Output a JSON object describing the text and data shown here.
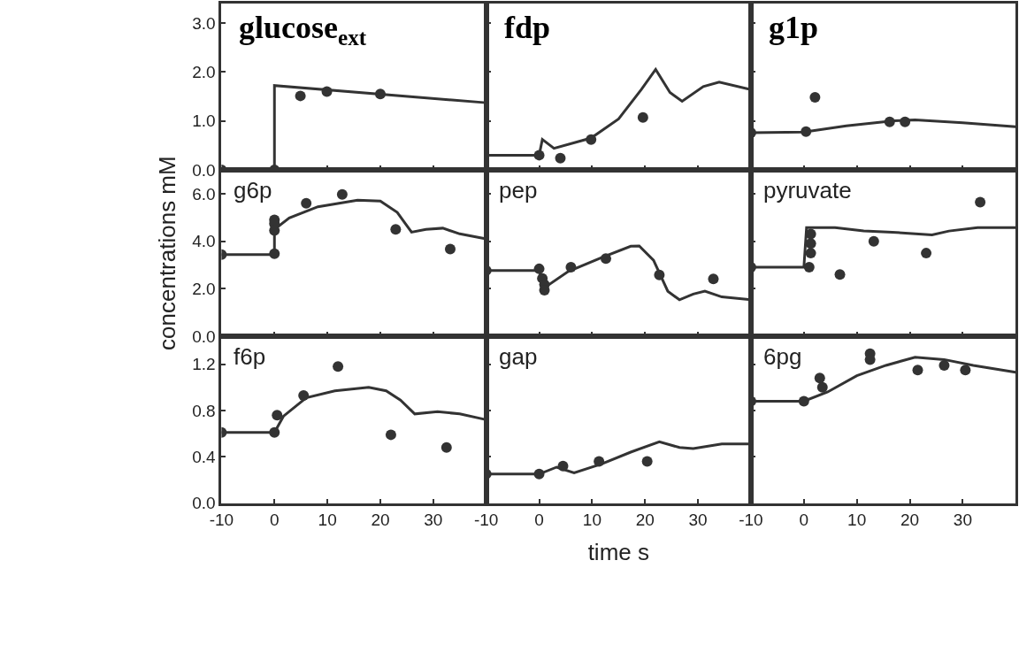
{
  "chart_data": [
    {
      "type": "line",
      "title": "glucose$_{ext}$",
      "xlim": [
        -10,
        40
      ],
      "ylim": [
        0,
        3.4
      ],
      "xticks": [
        -10,
        0,
        10,
        20,
        30
      ],
      "yticks": [
        {
          "value": 0,
          "label": "0.0"
        },
        {
          "value": 1,
          "label": "1.0"
        },
        {
          "value": 2,
          "label": "2.0"
        },
        {
          "value": 3,
          "label": "3.0"
        }
      ],
      "tick_labels": "y",
      "series": [
        {
          "marker": "none",
          "color": "#333333",
          "x": [
            -10,
            0,
            0,
            40
          ],
          "values": [
            0,
            0,
            1.72,
            1.37
          ]
        },
        {
          "type": "scatter",
          "marker": "circle",
          "color": "#333333",
          "x": [
            -10,
            0,
            4.9,
            9.9,
            20
          ],
          "values": [
            0,
            0,
            1.51,
            1.6,
            1.55
          ]
        }
      ]
    },
    {
      "type": "line",
      "title": "fdp",
      "xlim": [
        -10,
        40
      ],
      "ylim": [
        0,
        3.4
      ],
      "xticks": [
        -10,
        0,
        10,
        20,
        30
      ],
      "yticks": [
        0,
        1,
        2,
        3
      ],
      "tick_labels": false,
      "series": [
        {
          "marker": "none",
          "color": "#333333",
          "x": [
            -10,
            0,
            0.6,
            2.8,
            9.8,
            15,
            19.3,
            22,
            24.7,
            27,
            31,
            34,
            40
          ],
          "values": [
            0.3,
            0.3,
            0.62,
            0.44,
            0.65,
            1.04,
            1.64,
            2.05,
            1.58,
            1.4,
            1.7,
            1.79,
            1.64
          ]
        },
        {
          "type": "scatter",
          "marker": "circle",
          "color": "#333333",
          "x": [
            0,
            4,
            9.8,
            19.6
          ],
          "values": [
            0.3,
            0.24,
            0.62,
            1.07
          ]
        }
      ]
    },
    {
      "type": "line",
      "title": "g1p",
      "xlim": [
        -10,
        40
      ],
      "ylim": [
        0,
        3.4
      ],
      "xticks": [
        -10,
        0,
        10,
        20,
        30
      ],
      "yticks": [
        0,
        1,
        2,
        3
      ],
      "tick_labels": false,
      "series": [
        {
          "marker": "none",
          "color": "#333333",
          "x": [
            -10,
            0,
            8,
            17,
            21,
            30,
            40
          ],
          "values": [
            0.76,
            0.77,
            0.9,
            1.0,
            1.02,
            0.96,
            0.88
          ]
        },
        {
          "type": "scatter",
          "marker": "circle",
          "color": "#333333",
          "x": [
            -10,
            0.4,
            2.1,
            16.2,
            19.1
          ],
          "values": [
            0.76,
            0.78,
            1.48,
            0.98,
            0.98
          ]
        }
      ]
    },
    {
      "type": "line",
      "title": "g6p",
      "ylabel": "concentrations mM",
      "xlim": [
        -10,
        40
      ],
      "ylim": [
        0,
        7
      ],
      "xticks": [
        -10,
        0,
        10,
        20,
        30
      ],
      "yticks": [
        {
          "value": 0,
          "label": "0.0"
        },
        {
          "value": 2,
          "label": "2.0"
        },
        {
          "value": 4,
          "label": "4.0"
        },
        {
          "value": 6,
          "label": "6.0"
        }
      ],
      "tick_labels": "y",
      "series": [
        {
          "marker": "none",
          "color": "#333333",
          "x": [
            -10,
            0,
            0,
            2.8,
            8.2,
            15.7,
            20,
            23.2,
            25.9,
            28.6,
            31.8,
            35,
            40
          ],
          "values": [
            3.44,
            3.44,
            4.5,
            4.98,
            5.45,
            5.73,
            5.69,
            5.21,
            4.38,
            4.5,
            4.55,
            4.31,
            4.1
          ]
        },
        {
          "type": "scatter",
          "marker": "circle",
          "color": "#333333",
          "x": [
            -10,
            0,
            0,
            0,
            0,
            6,
            12.8,
            22.9,
            33.2
          ],
          "values": [
            3.44,
            3.48,
            4.9,
            4.74,
            4.45,
            5.6,
            5.97,
            4.5,
            3.67
          ]
        }
      ]
    },
    {
      "type": "line",
      "title": "pep",
      "xlim": [
        -10,
        40
      ],
      "ylim": [
        0,
        7
      ],
      "xticks": [
        -10,
        0,
        10,
        20,
        30
      ],
      "yticks": [
        0,
        2,
        4,
        6
      ],
      "tick_labels": false,
      "series": [
        {
          "marker": "none",
          "color": "#333333",
          "x": [
            -10,
            0,
            1,
            5.5,
            11.9,
            17.3,
            18.9,
            21.6,
            24.3,
            26.5,
            29.1,
            31.3,
            34.5,
            40
          ],
          "values": [
            2.77,
            2.77,
            2.05,
            2.73,
            3.32,
            3.79,
            3.8,
            3.2,
            1.9,
            1.54,
            1.78,
            1.9,
            1.66,
            1.54
          ]
        },
        {
          "type": "scatter",
          "marker": "circle",
          "color": "#333333",
          "x": [
            -10,
            0,
            0.6,
            1,
            1,
            6,
            12.6,
            22.7,
            32.9
          ],
          "values": [
            2.77,
            2.84,
            2.44,
            2.18,
            1.94,
            2.91,
            3.27,
            2.58,
            2.42
          ]
        }
      ]
    },
    {
      "type": "line",
      "title": "pyruvate",
      "xlim": [
        -10,
        40
      ],
      "ylim": [
        0,
        7
      ],
      "xticks": [
        -10,
        0,
        10,
        20,
        30
      ],
      "yticks": [
        0,
        2,
        4,
        6
      ],
      "tick_labels": false,
      "series": [
        {
          "marker": "none",
          "color": "#333333",
          "x": [
            -10,
            0,
            0.5,
            5.9,
            11.3,
            16.7,
            24.2,
            27.4,
            32.8,
            40
          ],
          "values": [
            2.91,
            2.91,
            4.57,
            4.57,
            4.43,
            4.38,
            4.27,
            4.43,
            4.57,
            4.57
          ]
        },
        {
          "type": "scatter",
          "marker": "circle",
          "color": "#333333",
          "x": [
            -10,
            1,
            1.3,
            1.3,
            1.3,
            6.8,
            13.2,
            23.1,
            33.3
          ],
          "values": [
            2.91,
            2.91,
            3.5,
            3.9,
            4.3,
            2.6,
            4.0,
            3.5,
            5.64
          ]
        }
      ]
    },
    {
      "type": "line",
      "title": "f6p",
      "xlim": [
        -10,
        40
      ],
      "ylim": [
        0,
        1.44
      ],
      "xticks": [
        -10,
        0,
        10,
        20,
        30
      ],
      "yticks": [
        {
          "value": 0,
          "label": "0.0"
        },
        {
          "value": 0.4,
          "label": "0.4"
        },
        {
          "value": 0.8,
          "label": "0.8"
        },
        {
          "value": 1.2,
          "label": "1.2"
        }
      ],
      "series": [
        {
          "marker": "none",
          "color": "#333333",
          "x": [
            -10,
            0,
            1.7,
            6,
            11.4,
            17.8,
            21.1,
            23.8,
            26.5,
            30.8,
            35,
            40
          ],
          "values": [
            0.61,
            0.61,
            0.75,
            0.91,
            0.97,
            1.0,
            0.97,
            0.89,
            0.77,
            0.79,
            0.77,
            0.72
          ]
        },
        {
          "type": "scatter",
          "marker": "circle",
          "color": "#333333",
          "x": [
            -10,
            0,
            0.5,
            5.5,
            12,
            22,
            32.5
          ],
          "values": [
            0.61,
            0.61,
            0.76,
            0.93,
            1.18,
            0.59,
            0.48
          ]
        }
      ]
    },
    {
      "type": "line",
      "title": "gap",
      "xlabel": "time s",
      "xlim": [
        -10,
        40
      ],
      "ylim": [
        0,
        1.44
      ],
      "xticks": [
        -10,
        0,
        10,
        20,
        30
      ],
      "yticks": [
        0,
        0.4,
        0.8,
        1.2
      ],
      "tick_labels": "x",
      "series": [
        {
          "marker": "none",
          "color": "#333333",
          "x": [
            -10,
            0,
            3.3,
            6.6,
            11.9,
            17.3,
            22.7,
            26.5,
            29.1,
            34.5,
            40
          ],
          "values": [
            0.25,
            0.25,
            0.31,
            0.26,
            0.34,
            0.44,
            0.53,
            0.48,
            0.47,
            0.51,
            0.51
          ]
        },
        {
          "type": "scatter",
          "marker": "circle",
          "color": "#333333",
          "x": [
            -10,
            0,
            4.5,
            11.3,
            20.4
          ],
          "values": [
            0.25,
            0.25,
            0.32,
            0.36,
            0.36
          ]
        }
      ]
    },
    {
      "type": "line",
      "title": "6pg",
      "xlim": [
        -10,
        40
      ],
      "ylim": [
        0,
        1.44
      ],
      "xticks": [
        -10,
        0,
        10,
        20,
        30
      ],
      "yticks": [
        0,
        0.4,
        0.8,
        1.2
      ],
      "tick_labels": "x",
      "series": [
        {
          "marker": "none",
          "color": "#333333",
          "x": [
            -10,
            0,
            4.5,
            10,
            15.5,
            21,
            26.5,
            32,
            40
          ],
          "values": [
            0.88,
            0.88,
            0.96,
            1.1,
            1.19,
            1.26,
            1.24,
            1.19,
            1.13
          ]
        },
        {
          "type": "scatter",
          "marker": "circle",
          "color": "#333333",
          "x": [
            -10,
            0,
            3,
            3.5,
            12.5,
            12.5,
            21.5,
            26.5,
            30.5
          ],
          "values": [
            0.88,
            0.88,
            1.08,
            1.0,
            1.29,
            1.24,
            1.15,
            1.19,
            1.15
          ]
        }
      ]
    }
  ]
}
